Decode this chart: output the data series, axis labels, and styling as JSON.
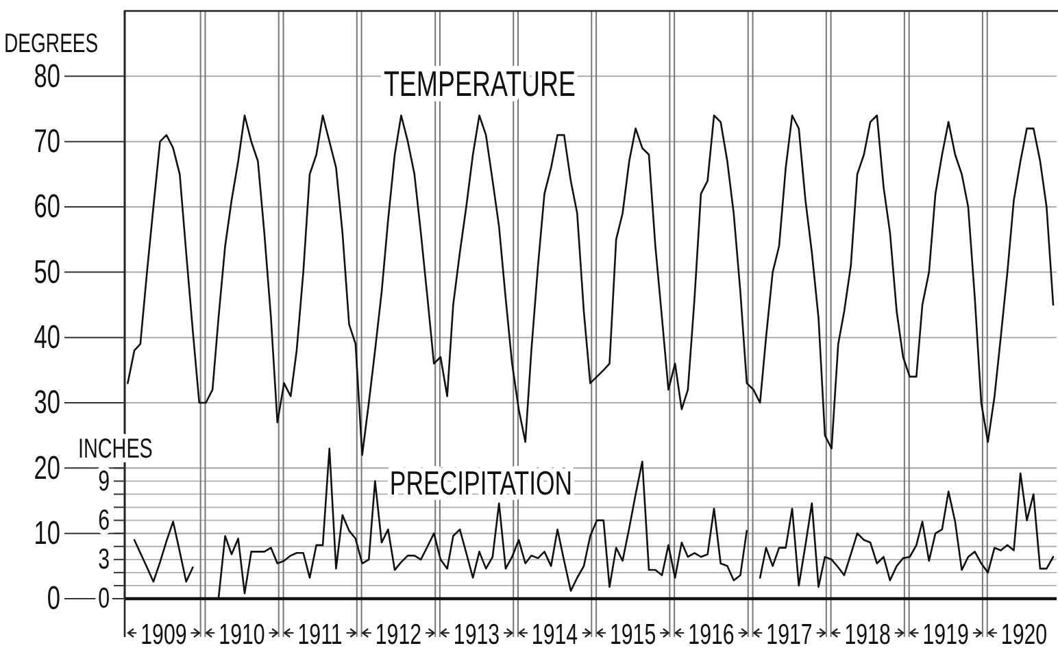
{
  "chart_data": {
    "type": "line",
    "ylabel": "DEGREES",
    "y2label": "INCHES",
    "x": [
      "1909-01-15",
      "1909-02-15",
      "1909-03-15",
      "1909-04-15",
      "1909-05-15",
      "1909-06-15",
      "1909-07-15",
      "1909-08-15",
      "1909-09-15",
      "1909-10-15",
      "1909-11-15",
      "1909-12-15",
      "1910-01-15",
      "1910-02-15",
      "1910-03-15",
      "1910-04-15",
      "1910-05-15",
      "1910-06-15",
      "1910-07-15",
      "1910-08-15",
      "1910-09-15",
      "1910-10-15",
      "1910-11-15",
      "1910-12-15",
      "1911-01-15",
      "1911-02-15",
      "1911-03-15",
      "1911-04-15",
      "1911-05-15",
      "1911-06-15",
      "1911-07-15",
      "1911-08-15",
      "1911-09-15",
      "1911-10-15",
      "1911-11-15",
      "1911-12-15",
      "1912-01-15",
      "1912-02-15",
      "1912-03-15",
      "1912-04-15",
      "1912-05-15",
      "1912-06-15",
      "1912-07-15",
      "1912-08-15",
      "1912-09-15",
      "1912-10-15",
      "1912-11-15",
      "1912-12-15",
      "1913-01-15",
      "1913-02-15",
      "1913-03-15",
      "1913-04-15",
      "1913-05-15",
      "1913-06-15",
      "1913-07-15",
      "1913-08-15",
      "1913-09-15",
      "1913-10-15",
      "1913-11-15",
      "1913-12-15",
      "1914-01-15",
      "1914-02-15",
      "1914-03-15",
      "1914-04-15",
      "1914-05-15",
      "1914-06-15",
      "1914-07-15",
      "1914-08-15",
      "1914-09-15",
      "1914-10-15",
      "1914-11-15",
      "1914-12-15",
      "1915-01-15",
      "1915-02-15",
      "1915-03-15",
      "1915-04-15",
      "1915-05-15",
      "1915-06-15",
      "1915-07-15",
      "1915-08-15",
      "1915-09-15",
      "1915-10-15",
      "1915-11-15",
      "1915-12-15",
      "1916-01-15",
      "1916-02-15",
      "1916-03-15",
      "1916-04-15",
      "1916-05-15",
      "1916-06-15",
      "1916-07-15",
      "1916-08-15",
      "1916-09-15",
      "1916-10-15",
      "1916-11-15",
      "1916-12-15",
      "1917-01-15",
      "1917-02-15",
      "1917-03-15",
      "1917-04-15",
      "1917-05-15",
      "1917-06-15",
      "1917-07-15",
      "1917-08-15",
      "1917-09-15",
      "1917-10-15",
      "1917-11-15",
      "1917-12-15",
      "1918-01-15",
      "1918-02-15",
      "1918-03-15",
      "1918-04-15",
      "1918-05-15",
      "1918-06-15",
      "1918-07-15",
      "1918-08-15",
      "1918-09-15",
      "1918-10-15",
      "1918-11-15",
      "1918-12-15",
      "1919-01-15",
      "1919-02-15",
      "1919-03-15",
      "1919-04-15",
      "1919-05-15",
      "1919-06-15",
      "1919-07-15",
      "1919-08-15",
      "1919-09-15",
      "1919-10-15",
      "1919-11-15",
      "1919-12-15",
      "1920-01-15",
      "1920-02-15",
      "1920-03-15",
      "1920-04-15",
      "1920-05-15",
      "1920-06-15",
      "1920-07-15",
      "1920-08-15",
      "1920-09-15",
      "1920-10-15",
      "1920-11-15"
    ],
    "xlim": [
      "1909-01-01",
      "1920-12-01"
    ],
    "xticks": [
      {
        "value": "1909-07-02",
        "label": "1909"
      },
      {
        "value": "1910-07-02",
        "label": "1910"
      },
      {
        "value": "1911-07-02",
        "label": "1911"
      },
      {
        "value": "1912-07-02",
        "label": "1912"
      },
      {
        "value": "1913-07-02",
        "label": "1913"
      },
      {
        "value": "1914-07-02",
        "label": "1914"
      },
      {
        "value": "1915-07-02",
        "label": "1915"
      },
      {
        "value": "1916-07-02",
        "label": "1916"
      },
      {
        "value": "1917-07-02",
        "label": "1917"
      },
      {
        "value": "1918-07-02",
        "label": "1918"
      },
      {
        "value": "1919-07-02",
        "label": "1919"
      },
      {
        "value": "1920-07-02",
        "label": "1920"
      }
    ],
    "ylim": [
      0,
      90
    ],
    "yticks": [
      0,
      10,
      20,
      30,
      40,
      50,
      60,
      70,
      80
    ],
    "y2lim": [
      0,
      45
    ],
    "y2ticks": [
      0,
      {
        "value": 1,
        "label": null
      },
      {
        "value": 2,
        "label": null
      },
      3,
      {
        "value": 4,
        "label": null
      },
      {
        "value": 5,
        "label": null
      },
      6,
      {
        "value": 7,
        "label": null
      },
      {
        "value": 8,
        "label": null
      },
      9,
      {
        "value": 10,
        "label": null
      }
    ],
    "grid": "y",
    "ref_lines": [
      {
        "axis": "x",
        "value": "1910-01-01"
      },
      {
        "axis": "x",
        "value": "1911-01-01"
      },
      {
        "axis": "x",
        "value": "1912-01-01"
      },
      {
        "axis": "x",
        "value": "1913-01-01"
      },
      {
        "axis": "x",
        "value": "1914-01-01"
      },
      {
        "axis": "x",
        "value": "1915-01-01"
      },
      {
        "axis": "x",
        "value": "1916-01-01"
      },
      {
        "axis": "x",
        "value": "1917-01-01"
      },
      {
        "axis": "x",
        "value": "1918-01-01"
      },
      {
        "axis": "x",
        "value": "1919-01-01"
      },
      {
        "axis": "x",
        "value": "1920-01-01"
      }
    ],
    "series": [
      {
        "name": "TEMPERATURE",
        "color": "#111111",
        "values": [
          33,
          38,
          39,
          50,
          60,
          70,
          71,
          69,
          65,
          53,
          41,
          30,
          30,
          32,
          43,
          54,
          61,
          67,
          74,
          70,
          67,
          56,
          43,
          27,
          33,
          31,
          38,
          50,
          65,
          68,
          74,
          70,
          66,
          56,
          42,
          39,
          22,
          30,
          38,
          47,
          58,
          68,
          74,
          70,
          65,
          56,
          46,
          36,
          37,
          31,
          45,
          53,
          60,
          68,
          74,
          71,
          64,
          57,
          46,
          36,
          29,
          24,
          38,
          51,
          62,
          66,
          71,
          71,
          64,
          59,
          44,
          33,
          34,
          35,
          36,
          55,
          59,
          67,
          72,
          69,
          68,
          54,
          43,
          32,
          36,
          29,
          32,
          46,
          62,
          64,
          74,
          73,
          67,
          59,
          47,
          33,
          32,
          30,
          40,
          50,
          54,
          66,
          74,
          72,
          61,
          53,
          43,
          25,
          23,
          39,
          44,
          51,
          65,
          68,
          73,
          74,
          63,
          56,
          44,
          37,
          34,
          34,
          45,
          50,
          62,
          68,
          73,
          68,
          65,
          60,
          46,
          30,
          24,
          31,
          40,
          50,
          61,
          67,
          72,
          72,
          67,
          60,
          45
        ]
      },
      {
        "name": "PRECIPITATION",
        "color": "#111111",
        "axis": "y2",
        "values": [
          null,
          4.5,
          3.5,
          2.4,
          1.3,
          2.8,
          4.4,
          5.9,
          3.6,
          1.3,
          2.4,
          null,
          null,
          null,
          0,
          4.8,
          3.4,
          4.6,
          0.4,
          3.6,
          3.6,
          3.6,
          3.9,
          2.7,
          2.9,
          3.3,
          3.5,
          3.5,
          1.6,
          4.1,
          4.1,
          11.5,
          2.3,
          6.4,
          5.2,
          4.6,
          2.7,
          3,
          9,
          4.3,
          5.3,
          2.2,
          2.8,
          3.3,
          3.3,
          3,
          4,
          5,
          3,
          2.3,
          4.8,
          5.3,
          3.5,
          1.6,
          3.6,
          2.3,
          3.2,
          7.3,
          2.3,
          3.2,
          4.5,
          2.7,
          3.3,
          3.1,
          3.6,
          2.5,
          5.3,
          2.9,
          0.6,
          1.6,
          2.5,
          4.8,
          6,
          6,
          0.9,
          3.9,
          2.9,
          5.4,
          8,
          10.5,
          2.2,
          2.2,
          1.8,
          4.1,
          1.6,
          4.3,
          3.2,
          3.5,
          3.2,
          3.4,
          6.9,
          2.7,
          2.5,
          1.4,
          1.8,
          5.2,
          null,
          1.6,
          3.9,
          2.5,
          3.9,
          3.9,
          6.9,
          1,
          4.1,
          7.3,
          0.9,
          3.2,
          3,
          2.4,
          1.8,
          3.4,
          5,
          4.5,
          4.3,
          2.7,
          3.2,
          1.4,
          2.5,
          3.1,
          3.2,
          4.1,
          5.9,
          2.9,
          5,
          5.3,
          8.2,
          5.9,
          2.2,
          3.2,
          3.6,
          2.7,
          2,
          3.9,
          3.7,
          4.1,
          3.7,
          9.6,
          6,
          8,
          2.3,
          2.3,
          3.2
        ]
      }
    ]
  }
}
